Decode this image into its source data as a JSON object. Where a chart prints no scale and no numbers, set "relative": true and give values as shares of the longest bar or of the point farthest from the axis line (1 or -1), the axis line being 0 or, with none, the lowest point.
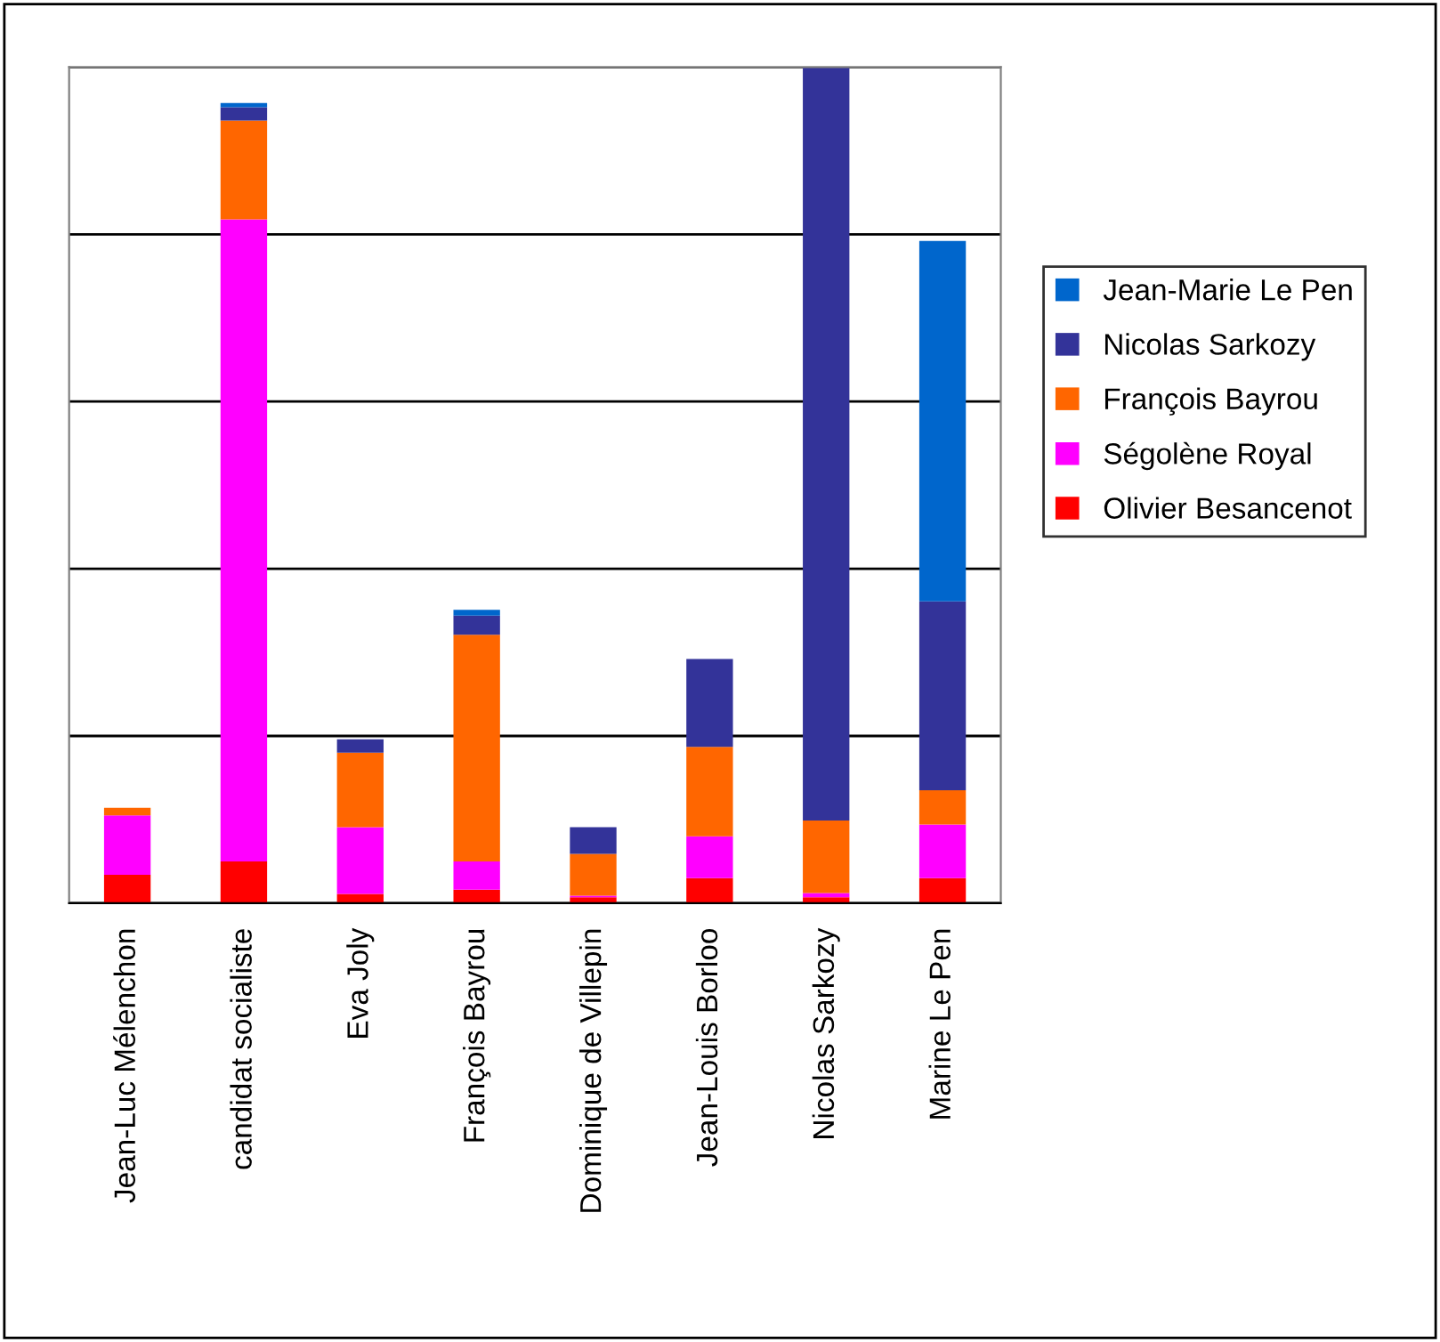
{
  "chart_data": {
    "type": "bar",
    "stacked": true,
    "relative": true,
    "grid": "y",
    "legend": "right",
    "categories": [
      "Jean-Luc Mélenchon",
      "candidat socialiste",
      "Eva Joly",
      "François Bayrou",
      "Dominique de Villepin",
      "Jean-Louis Borloo",
      "Nicolas Sarkozy",
      "Marine Le Pen"
    ],
    "series": [
      {
        "name": "Olivier Besancenot",
        "color": "#ff0000",
        "values": [
          0.034,
          0.05,
          0.011,
          0.016,
          0.007,
          0.03,
          0.007,
          0.03
        ]
      },
      {
        "name": "Ségolène Royal",
        "color": "#ff00ff",
        "values": [
          0.071,
          0.768,
          0.08,
          0.034,
          0.002,
          0.05,
          0.005,
          0.064
        ]
      },
      {
        "name": "François Bayrou",
        "color": "#ff6600",
        "values": [
          0.009,
          0.118,
          0.089,
          0.271,
          0.05,
          0.107,
          0.087,
          0.041
        ]
      },
      {
        "name": "Nicolas Sarkozy",
        "color": "#333399",
        "values": [
          0,
          0.016,
          0.016,
          0.023,
          0.032,
          0.105,
          0.901,
          0.226
        ]
      },
      {
        "name": "Jean-Marie Le Pen",
        "color": "#0066cc",
        "values": [
          0,
          0.005,
          0,
          0.007,
          0,
          0,
          0,
          0.431
        ]
      }
    ]
  }
}
